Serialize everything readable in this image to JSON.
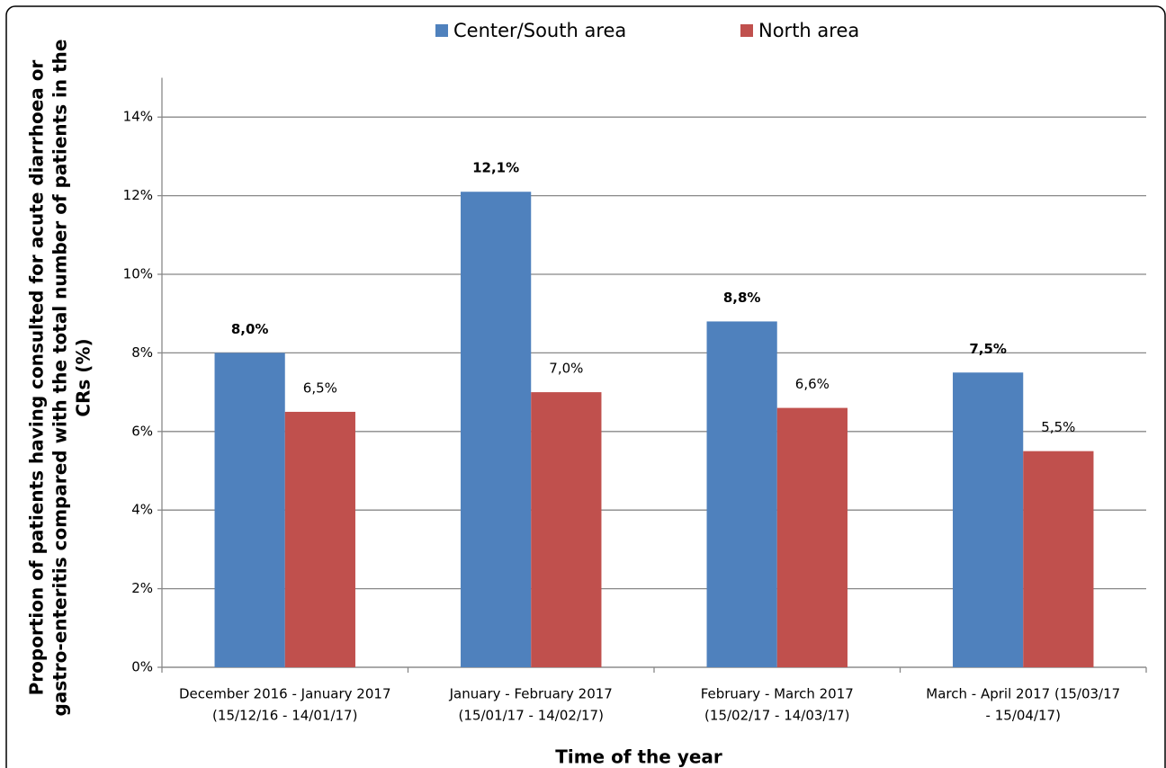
{
  "chart_data": {
    "type": "bar",
    "y_label": [
      "Proportion of patients having consulted for acute diarrhoea or",
      "gastro-enteritis compared with the total number of patients in the",
      "CRs (%)"
    ],
    "x_label": "Time of the year",
    "categories": [
      [
        "December 2016 - January 2017",
        "(15/12/16 - 14/01/17)"
      ],
      [
        "January - February 2017",
        "(15/01/17 - 14/02/17)"
      ],
      [
        "February - March 2017",
        "(15/02/17 - 14/03/17)"
      ],
      [
        "March - April 2017    (15/03/17",
        "- 15/04/17)"
      ]
    ],
    "series": [
      {
        "name": "Center/South area",
        "color": "#4f81bd",
        "label_color": "#e00000",
        "label_bold": true,
        "values": [
          8.0,
          12.1,
          8.8,
          7.5
        ],
        "value_labels": [
          "8,0%",
          "12,1%",
          "8,8%",
          "7,5%"
        ]
      },
      {
        "name": "North area",
        "color": "#c0504d",
        "label_color": "#000000",
        "label_bold": false,
        "values": [
          6.5,
          7.0,
          6.6,
          5.5
        ],
        "value_labels": [
          "6,5%",
          "7,0%",
          "6,6%",
          "5,5%"
        ]
      }
    ],
    "ylim": [
      0,
      15
    ],
    "yticks": [
      {
        "value": 0,
        "label": "0%"
      },
      {
        "value": 2,
        "label": "2%"
      },
      {
        "value": 4,
        "label": "4%"
      },
      {
        "value": 6,
        "label": "6%"
      },
      {
        "value": 8,
        "label": "8%"
      },
      {
        "value": 10,
        "label": "10%"
      },
      {
        "value": 12,
        "label": "12%"
      },
      {
        "value": 14,
        "label": "14%"
      }
    ],
    "grid": true,
    "legend": "top"
  }
}
